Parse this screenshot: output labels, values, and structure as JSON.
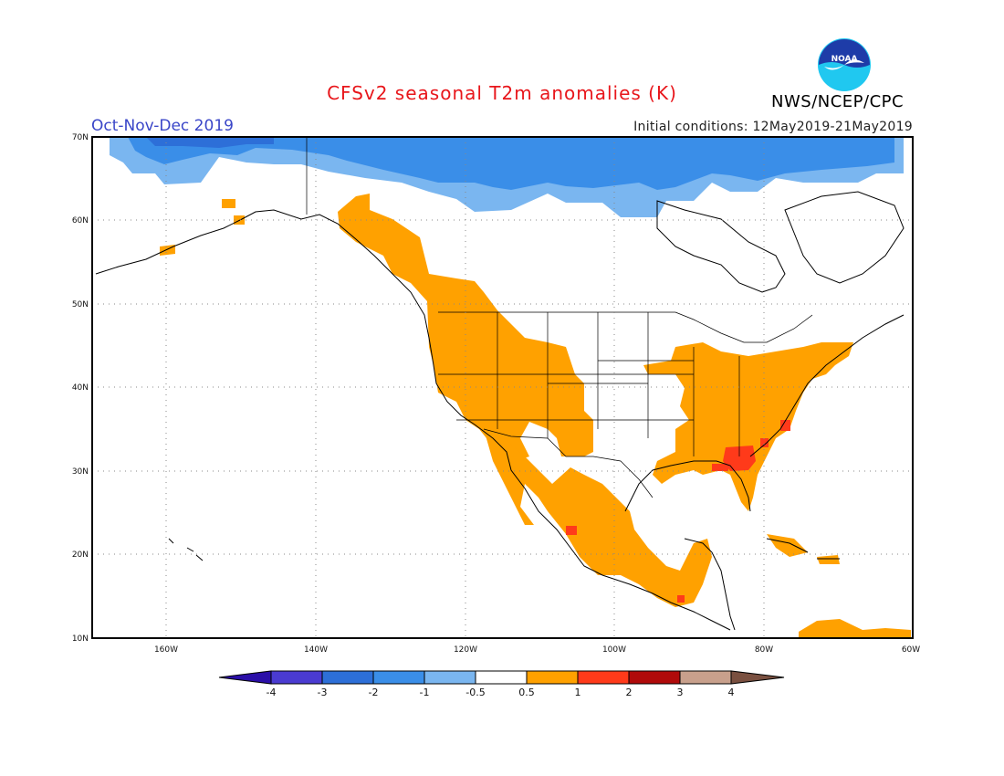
{
  "title": "CFSv2 seasonal T2m anomalies (K)",
  "season": "Oct-Nov-Dec 2019",
  "initial_conditions": "Initial conditions: 12May2019-21May2019",
  "agency": "NWS/NCEP/CPC",
  "logo_text": "NOAA",
  "map": {
    "lat_labels": [
      "70N",
      "60N",
      "50N",
      "40N",
      "30N",
      "20N",
      "10N"
    ],
    "lon_labels": [
      "160W",
      "140W",
      "120W",
      "100W",
      "80W",
      "60W"
    ],
    "regions": [
      {
        "name": "arctic-cool-anomaly-far",
        "category": "-2"
      },
      {
        "name": "arctic-cool-anomaly",
        "category": "-1"
      },
      {
        "name": "western-warm-anomaly",
        "category": "0.5"
      },
      {
        "name": "eastern-warm-anomaly",
        "category": "0.5"
      },
      {
        "name": "mexico-warm-anomaly",
        "category": "0.5"
      },
      {
        "name": "southeast-hot-anomaly",
        "category": "1"
      }
    ]
  },
  "colorbar": {
    "labels": [
      "-4",
      "-3",
      "-2",
      "-1",
      "-0.5",
      "0.5",
      "1",
      "2",
      "3",
      "4"
    ],
    "colors": [
      "#2b0fa8",
      "#4a3bd1",
      "#2d6fd8",
      "#3a8ee8",
      "#7ab6f0",
      "#ffffff",
      "#ffa100",
      "#ff3a1a",
      "#b00a0a",
      "#c8a08c",
      "#7a5040"
    ]
  }
}
